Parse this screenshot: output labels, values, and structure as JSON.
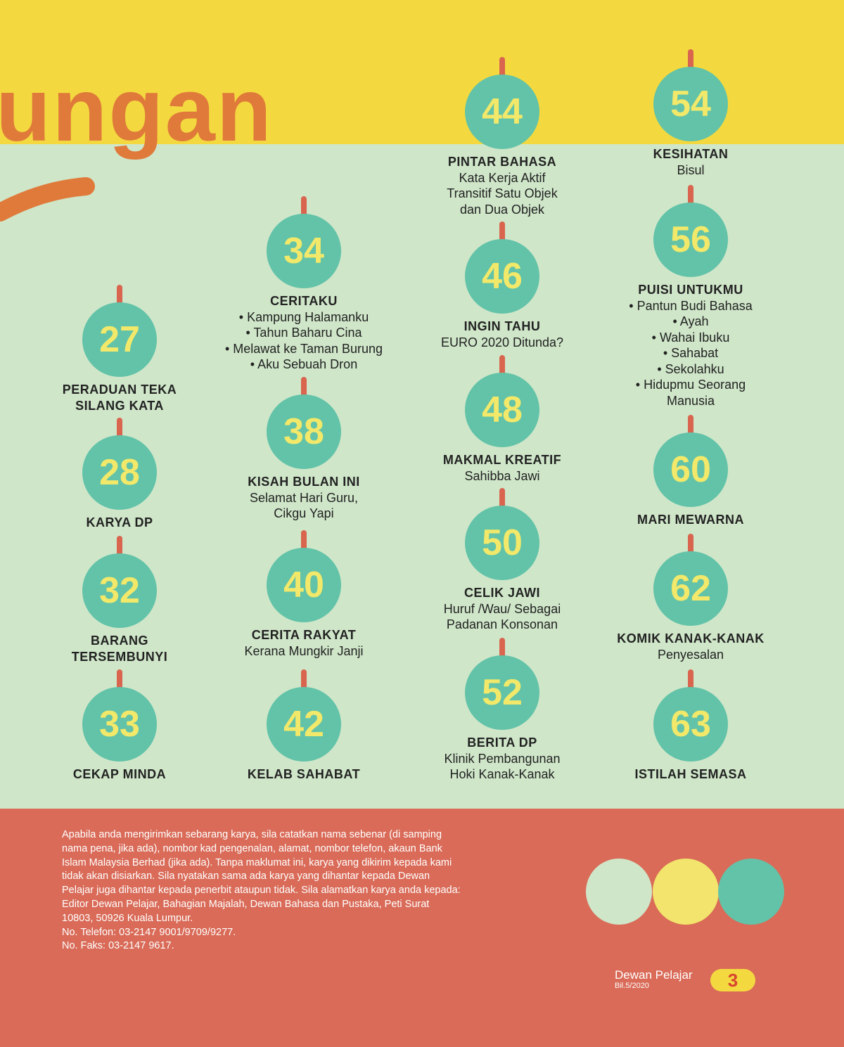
{
  "header": {
    "title": "ungan"
  },
  "entries": [
    {
      "page": 27,
      "title": [
        "PERADUAN TEKA",
        "SILANG KATA"
      ]
    },
    {
      "page": 28,
      "title": [
        "KARYA DP"
      ]
    },
    {
      "page": 32,
      "title": [
        "BARANG",
        "TERSEMBUNYI"
      ]
    },
    {
      "page": 33,
      "title": [
        "CEKAP MINDA"
      ]
    },
    {
      "page": 34,
      "title": [
        "CERITAKU"
      ],
      "lines": [
        "• Kampung Halamanku",
        "• Tahun Baharu Cina",
        "• Melawat ke Taman Burung",
        "• Aku Sebuah Dron"
      ]
    },
    {
      "page": 38,
      "title": [
        "KISAH BULAN INI"
      ],
      "lines": [
        "Selamat Hari Guru,",
        "Cikgu Yapi"
      ]
    },
    {
      "page": 40,
      "title": [
        "CERITA RAKYAT"
      ],
      "lines": [
        "Kerana Mungkir Janji"
      ]
    },
    {
      "page": 42,
      "title": [
        "KELAB SAHABAT"
      ]
    },
    {
      "page": 44,
      "title": [
        "PINTAR BAHASA"
      ],
      "lines": [
        "Kata Kerja Aktif",
        "Transitif Satu Objek",
        "dan Dua Objek"
      ]
    },
    {
      "page": 46,
      "title": [
        "INGIN TAHU"
      ],
      "lines": [
        "EURO 2020 Ditunda?"
      ]
    },
    {
      "page": 48,
      "title": [
        "MAKMAL KREATIF"
      ],
      "lines": [
        "Sahibba Jawi"
      ]
    },
    {
      "page": 50,
      "title": [
        "CELIK JAWI"
      ],
      "lines": [
        "Huruf /Wau/ Sebagai",
        "Padanan Konsonan"
      ]
    },
    {
      "page": 52,
      "title": [
        "BERITA DP"
      ],
      "lines": [
        "Klinik Pembangunan",
        "Hoki Kanak-Kanak"
      ]
    },
    {
      "page": 54,
      "title": [
        "KESIHATAN"
      ],
      "lines": [
        "Bisul"
      ]
    },
    {
      "page": 56,
      "title": [
        "PUISI UNTUKMU"
      ],
      "lines": [
        "• Pantun Budi Bahasa",
        "• Ayah",
        "• Wahai Ibuku",
        "• Sahabat",
        "• Sekolahku",
        "• Hidupmu Seorang",
        "Manusia"
      ]
    },
    {
      "page": 60,
      "title": [
        "MARI MEWARNA"
      ]
    },
    {
      "page": 62,
      "title": [
        "KOMIK KANAK-KANAK"
      ],
      "lines": [
        "Penyesalan"
      ]
    },
    {
      "page": 63,
      "title": [
        "ISTILAH SEMASA"
      ]
    }
  ],
  "footer": {
    "notice": [
      "Apabila anda mengirimkan sebarang karya, sila catatkan nama sebenar (di samping",
      "nama pena, jika ada), nombor kad pengenalan, alamat, nombor telefon, akaun Bank",
      "Islam Malaysia Berhad (jika ada). Tanpa maklumat ini, karya yang dikirim kepada kami",
      "tidak akan disiarkan. Sila nyatakan sama ada karya yang dihantar kepada Dewan",
      "Pelajar juga dihantar kepada penerbit ataupun tidak. Sila alamatkan karya anda kepada:",
      "Editor Dewan Pelajar, Bahagian Majalah, Dewan Bahasa dan Pustaka, Peti Surat",
      "10803, 50926 Kuala Lumpur.",
      "No. Telefon: 03-2147 9001/9709/9277.",
      "No. Faks: 03-2147 9617."
    ],
    "magazine": "Dewan Pelajar",
    "issue": "Bil.5/2020",
    "page_number": "3"
  }
}
